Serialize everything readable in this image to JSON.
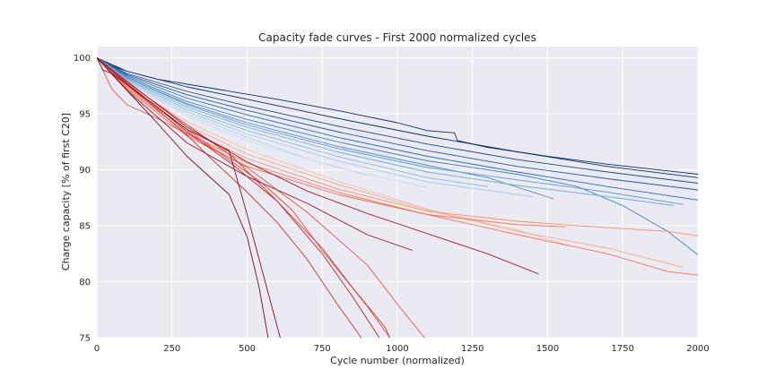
{
  "chart_data": {
    "type": "line",
    "title": "Capacity fade curves - First 2000 normalized cycles",
    "xlabel": "Cycle number (normalized)",
    "ylabel": "Charge capacity [% of first C20]",
    "xlim": [
      0,
      2000
    ],
    "ylim": [
      75,
      101
    ],
    "xticks": [
      0,
      250,
      500,
      750,
      1000,
      1250,
      1500,
      1750,
      2000
    ],
    "yticks": [
      75,
      80,
      85,
      90,
      95,
      100
    ],
    "grid": true,
    "background": "#eaeaf2",
    "gridcolor": "#ffffff",
    "series": [
      {
        "color": "#08306b",
        "x": [
          0,
          50,
          100,
          200,
          400,
          600,
          800,
          1000,
          1100,
          1190,
          1200,
          1300,
          1500,
          1700,
          2000
        ],
        "y": [
          100,
          99.3,
          98.8,
          98.1,
          97.2,
          96.3,
          95.3,
          94.2,
          93.5,
          93.3,
          92.6,
          92.0,
          91.2,
          90.5,
          89.6
        ]
      },
      {
        "color": "#08306b",
        "x": [
          0,
          100,
          300,
          500,
          800,
          1100,
          1400,
          1700,
          2000
        ],
        "y": [
          100,
          98.8,
          97.4,
          96.3,
          94.6,
          93.0,
          91.6,
          90.3,
          89.3
        ]
      },
      {
        "color": "#1d4a8a",
        "x": [
          0,
          100,
          300,
          500,
          800,
          1100,
          1400,
          1700,
          2000
        ],
        "y": [
          100,
          98.6,
          97.0,
          95.7,
          93.9,
          92.3,
          90.9,
          89.8,
          88.8
        ]
      },
      {
        "color": "#245aa0",
        "x": [
          0,
          100,
          300,
          500,
          800,
          1100,
          1400,
          1700,
          2000
        ],
        "y": [
          100,
          98.5,
          96.7,
          95.3,
          93.4,
          91.7,
          90.3,
          89.2,
          88.2
        ]
      },
      {
        "color": "#2b6cb0",
        "x": [
          0,
          100,
          300,
          500,
          800,
          1100,
          1400,
          1700,
          2000
        ],
        "y": [
          100,
          98.4,
          96.4,
          94.9,
          92.9,
          91.2,
          89.8,
          88.5,
          87.3
        ]
      },
      {
        "color": "#3d83c1",
        "x": [
          0,
          100,
          300,
          500,
          800,
          1100,
          1400,
          1600,
          1750,
          1900,
          2000
        ],
        "y": [
          100,
          98.3,
          96.1,
          94.5,
          92.5,
          90.8,
          89.6,
          88.5,
          86.8,
          84.5,
          82.4
        ]
      },
      {
        "color": "#4b8fc8",
        "x": [
          0,
          100,
          300,
          500,
          800,
          1100,
          1300,
          1520
        ],
        "y": [
          100,
          98.2,
          95.9,
          94.2,
          92.1,
          90.4,
          89.3,
          87.4
        ]
      },
      {
        "color": "#5b9dd0",
        "x": [
          0,
          100,
          300,
          500,
          800,
          1100,
          1400,
          1700,
          1950
        ],
        "y": [
          100,
          98.2,
          95.8,
          94.0,
          91.9,
          90.2,
          89.1,
          88.0,
          86.9
        ]
      },
      {
        "color": "#6baed6",
        "x": [
          0,
          100,
          300,
          500,
          800,
          1100,
          1400,
          1700,
          1920
        ],
        "y": [
          100,
          98.1,
          95.6,
          93.8,
          91.6,
          89.8,
          88.6,
          87.6,
          86.8
        ]
      },
      {
        "color": "#82bbdd",
        "x": [
          0,
          100,
          300,
          500,
          800,
          1100,
          1300
        ],
        "y": [
          100,
          98.0,
          95.4,
          93.5,
          91.2,
          89.3,
          88.5
        ]
      },
      {
        "color": "#9ecae1",
        "x": [
          0,
          100,
          300,
          500,
          800,
          1100,
          1450
        ],
        "y": [
          100,
          97.9,
          95.2,
          93.2,
          90.8,
          88.9,
          87.6
        ]
      },
      {
        "color": "#b5d5e9",
        "x": [
          0,
          100,
          300,
          500,
          700,
          900
        ],
        "y": [
          100,
          97.8,
          95.0,
          92.9,
          91.0,
          89.5
        ]
      },
      {
        "color": "#c6dbef",
        "x": [
          0,
          100,
          300,
          500,
          800,
          1100
        ],
        "y": [
          100,
          97.8,
          94.8,
          92.6,
          90.2,
          88.4
        ]
      },
      {
        "color": "#fcbba1",
        "x": [
          0,
          100,
          300,
          500,
          800,
          1100,
          1400,
          1550
        ],
        "y": [
          100,
          97.6,
          94.3,
          91.8,
          89.0,
          86.5,
          84.6,
          83.4
        ]
      },
      {
        "color": "#fca588",
        "x": [
          0,
          100,
          300,
          500,
          800,
          1100,
          1400,
          1700,
          1950
        ],
        "y": [
          100,
          97.5,
          94.0,
          91.4,
          88.7,
          86.4,
          84.5,
          83.0,
          81.3
        ]
      },
      {
        "color": "#fb8f6e",
        "x": [
          0,
          100,
          300,
          500,
          800,
          1100,
          1400,
          1600,
          1900,
          2000
        ],
        "y": [
          100,
          97.4,
          93.6,
          91.0,
          88.3,
          86.3,
          85.4,
          85.0,
          84.5,
          84.1
        ]
      },
      {
        "color": "#f4755a",
        "x": [
          0,
          100,
          300,
          500,
          800,
          1100,
          1400,
          1700,
          1900,
          2000
        ],
        "y": [
          100,
          97.3,
          93.3,
          90.6,
          88.0,
          86.0,
          84.2,
          82.5,
          80.9,
          80.6
        ]
      },
      {
        "color": "#ee6a50",
        "x": [
          0,
          100,
          300,
          500,
          800,
          1100,
          1400,
          1560
        ],
        "y": [
          100,
          97.2,
          93.0,
          90.3,
          87.8,
          86.0,
          85.1,
          84.9
        ]
      },
      {
        "color": "#e8553f",
        "x": [
          0,
          50,
          100,
          150,
          200,
          300,
          500,
          700,
          900,
          1000,
          1090
        ],
        "y": [
          100,
          97.2,
          95.8,
          95.2,
          94.6,
          93.2,
          90.2,
          86.2,
          81.5,
          78.0,
          75.0
        ]
      },
      {
        "color": "#e04a3a",
        "x": [
          0,
          100,
          200,
          300,
          450,
          550,
          650,
          750,
          900,
          975
        ],
        "y": [
          100,
          97.6,
          95.6,
          93.6,
          90.7,
          88.8,
          86.4,
          82.8,
          77.8,
          75.0
        ]
      },
      {
        "color": "#d43d33",
        "x": [
          0,
          100,
          200,
          300,
          450,
          600,
          750,
          850,
          960,
          975
        ],
        "y": [
          100,
          97.8,
          95.9,
          94.0,
          91.2,
          87.2,
          83.0,
          79.5,
          75.9,
          75.0
        ]
      },
      {
        "color": "#c8312b",
        "x": [
          0,
          100,
          200,
          300,
          400,
          500,
          600,
          700,
          800,
          880
        ],
        "y": [
          100,
          97.6,
          95.4,
          93.1,
          90.5,
          88.0,
          85.3,
          82.0,
          78.0,
          75.0
        ]
      },
      {
        "color": "#b7252a",
        "x": [
          0,
          100,
          200,
          300,
          450,
          600,
          750,
          850,
          940
        ],
        "y": [
          100,
          97.7,
          95.6,
          93.4,
          90.5,
          87.2,
          82.5,
          78.7,
          75.0
        ]
      },
      {
        "color": "#a81b2a",
        "x": [
          0,
          100,
          300,
          500,
          700,
          900,
          1100,
          1300,
          1470
        ],
        "y": [
          100,
          97.9,
          93.8,
          90.7,
          88.1,
          86.1,
          84.3,
          82.5,
          80.7
        ]
      },
      {
        "color": "#9a1128",
        "x": [
          0,
          100,
          300,
          500,
          700,
          900,
          1050
        ],
        "y": [
          100,
          97.1,
          92.4,
          89.4,
          87.0,
          84.2,
          82.8
        ]
      },
      {
        "color": "#8a0b26",
        "x": [
          0,
          20,
          50,
          150,
          300,
          440,
          500,
          560,
          610
        ],
        "y": [
          100,
          98.9,
          98.6,
          96.6,
          93.6,
          91.7,
          86.0,
          80.0,
          75.0
        ]
      },
      {
        "color": "#7a0622",
        "x": [
          0,
          100,
          200,
          300,
          440,
          500,
          540,
          570
        ],
        "y": [
          100,
          97.1,
          94.2,
          91.2,
          87.8,
          84.0,
          79.5,
          75.0
        ]
      }
    ]
  }
}
